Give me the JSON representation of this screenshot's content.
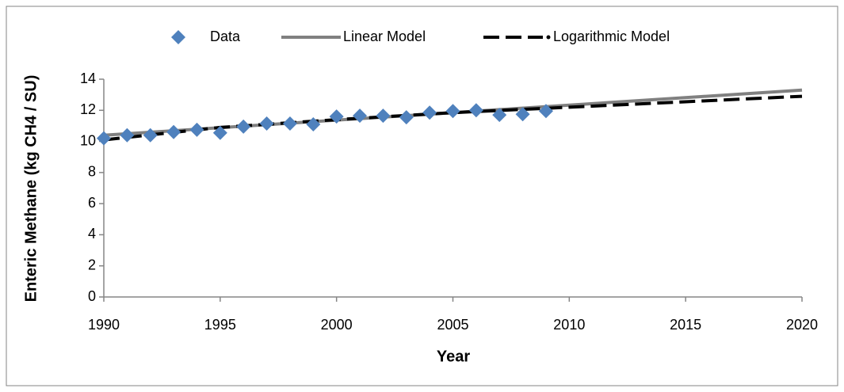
{
  "chart_data": {
    "type": "scatter",
    "x_label": "Year",
    "y_label": "Enteric Methane (kg CH4 / SU)",
    "xlim": [
      1990,
      2020
    ],
    "xticks": [
      1990,
      1995,
      2000,
      2005,
      2010,
      2015,
      2020
    ],
    "ylim": [
      0,
      14
    ],
    "yticks": [
      0,
      2,
      4,
      6,
      8,
      10,
      12,
      14
    ],
    "grid": false,
    "legend": "top",
    "series": [
      {
        "name": "Data",
        "color": "#4f81bd",
        "style": "markers",
        "x": [
          1990,
          1991,
          1992,
          1993,
          1994,
          1995,
          1996,
          1997,
          1998,
          1999,
          2000,
          2001,
          2002,
          2003,
          2004,
          2005,
          2006,
          2007,
          2008,
          2009
        ],
        "values": [
          10.2,
          10.4,
          10.4,
          10.6,
          10.75,
          10.55,
          10.95,
          11.15,
          11.15,
          11.1,
          11.6,
          11.65,
          11.65,
          11.55,
          11.85,
          11.95,
          12.0,
          11.7,
          11.75,
          11.95
        ]
      },
      {
        "name": "Linear Model",
        "color": "#808080",
        "style": "solid",
        "x": [
          1990,
          2020
        ],
        "values": [
          10.4,
          13.3
        ]
      },
      {
        "name": "Logarithmic Model",
        "color": "#000000",
        "style": "dashed",
        "x": [
          1990,
          1995,
          2000,
          2005,
          2010,
          2015,
          2020
        ],
        "values": [
          10.1,
          10.9,
          11.4,
          11.85,
          12.2,
          12.55,
          12.9
        ]
      }
    ]
  }
}
